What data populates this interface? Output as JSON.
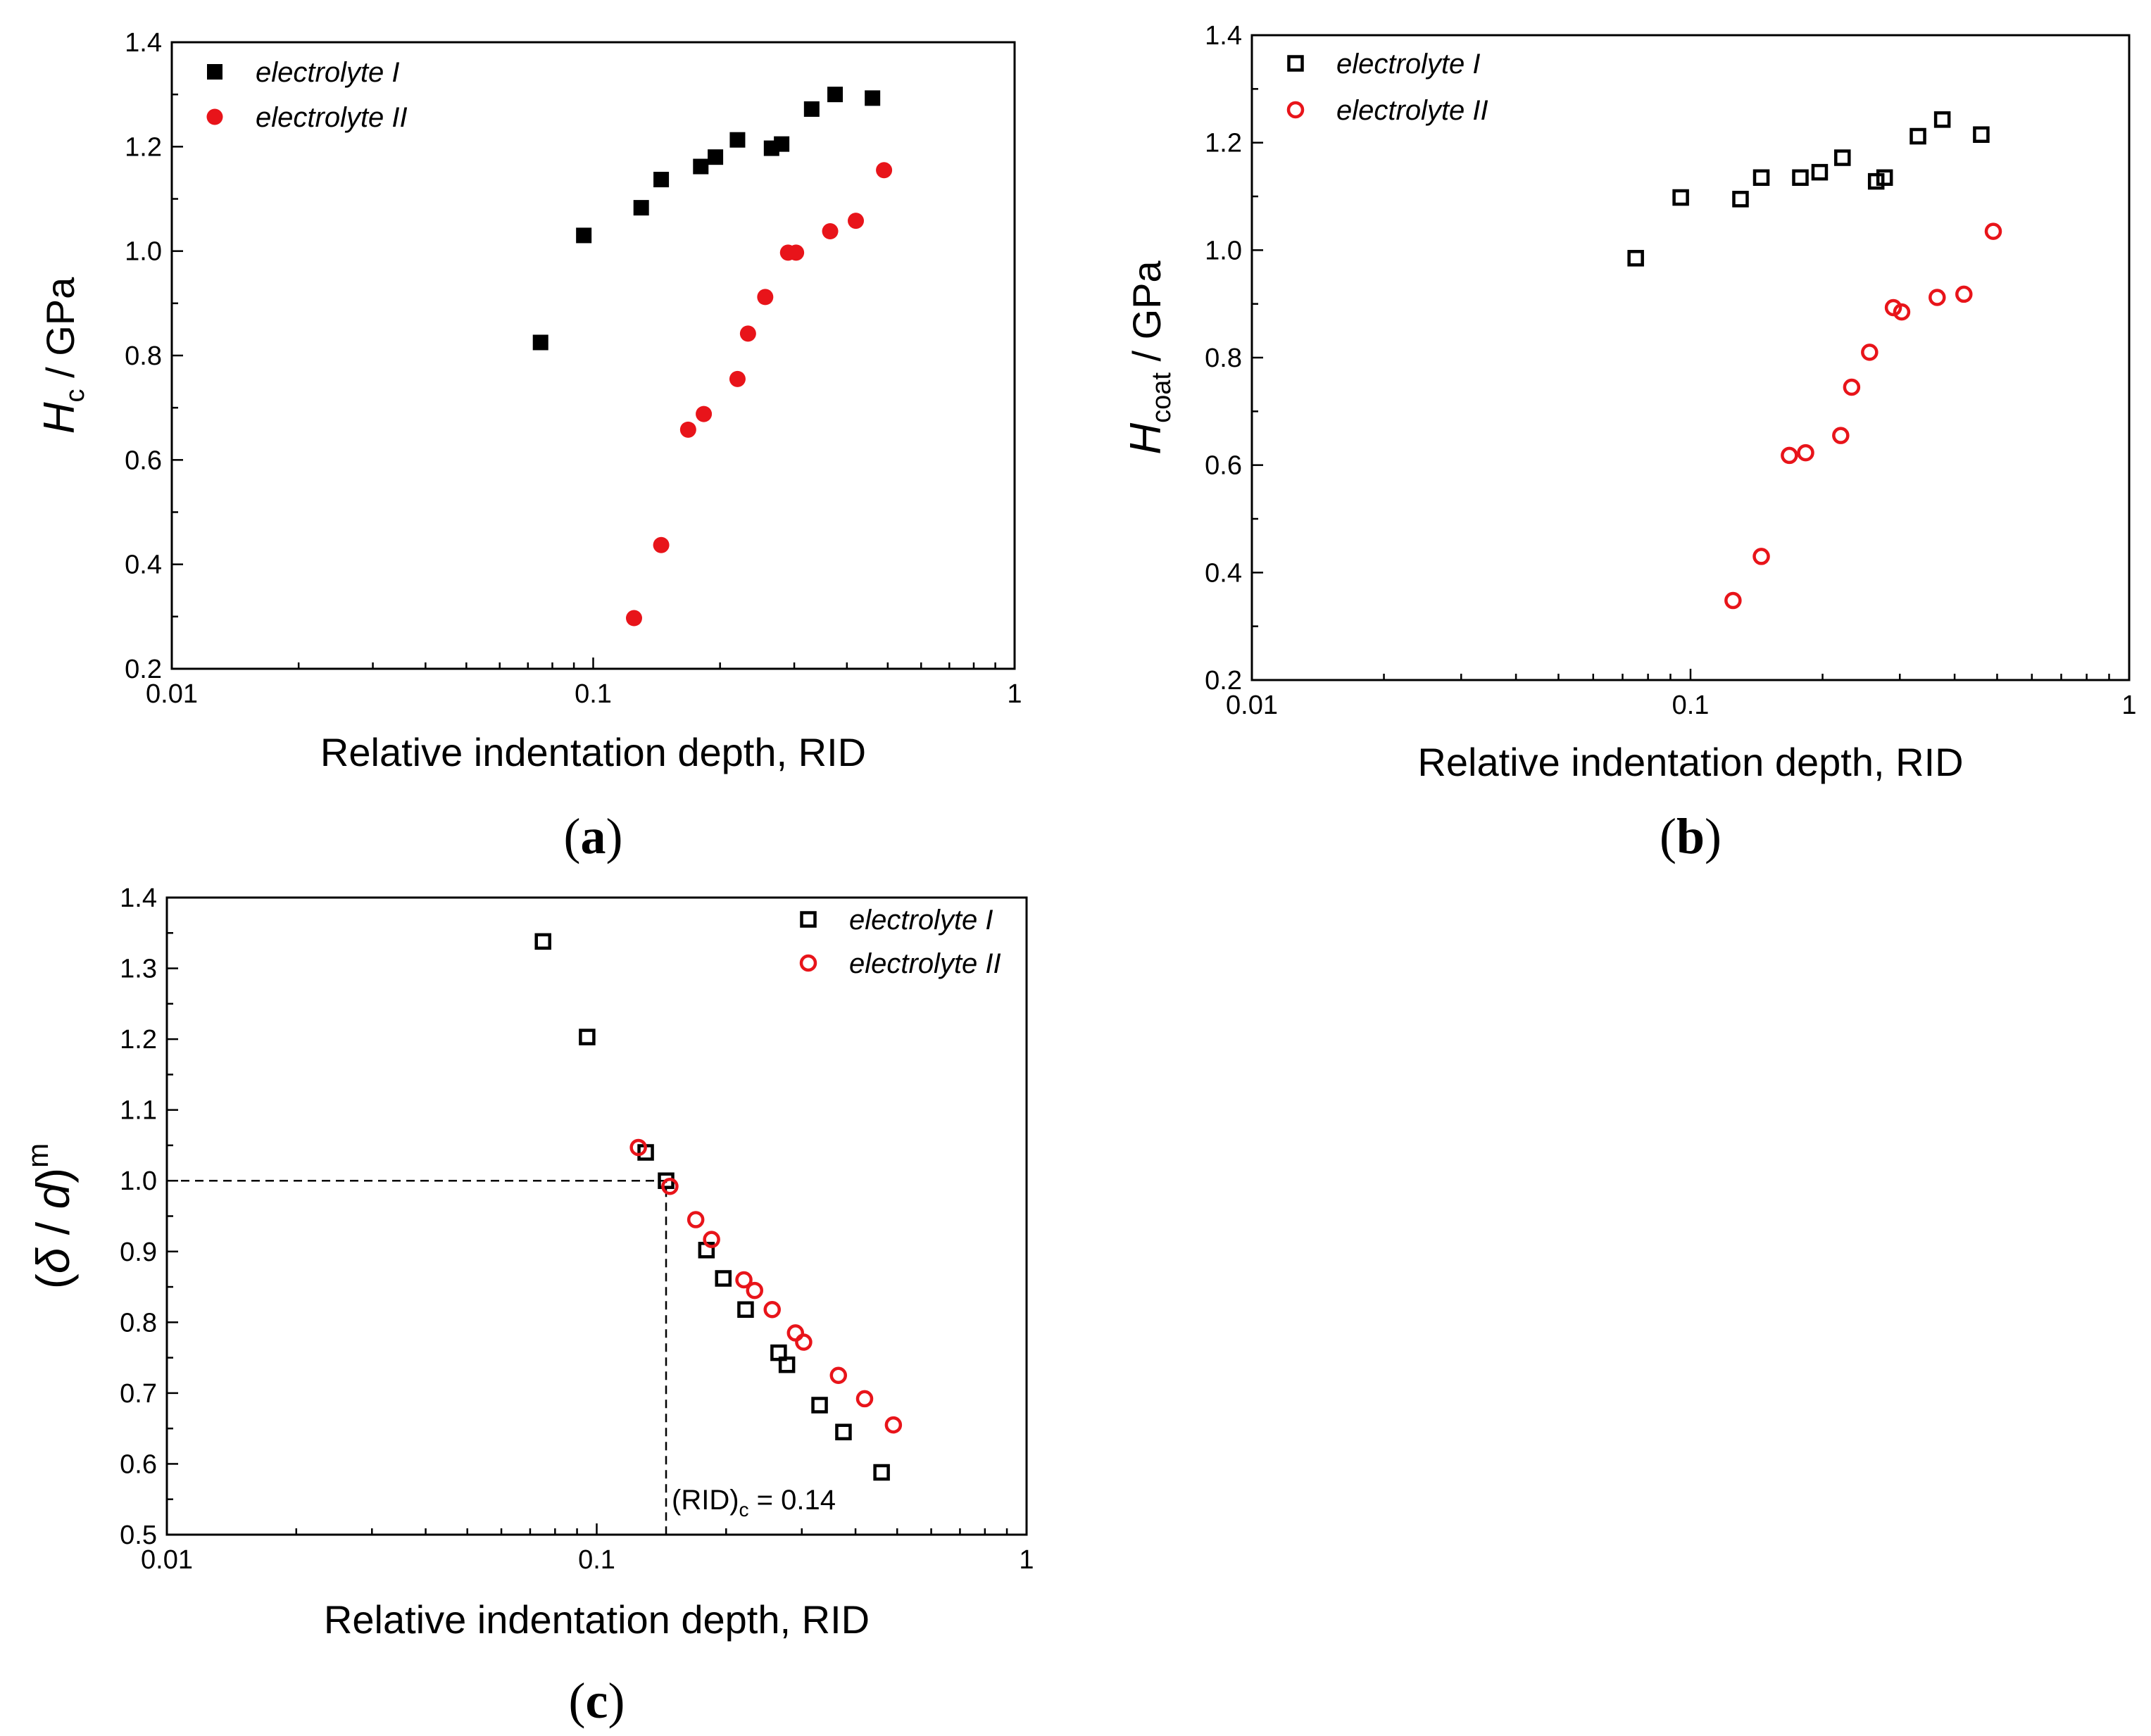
{
  "chart_data": [
    {
      "panel": "a",
      "type": "scatter",
      "caption": [
        "(",
        "a",
        ")"
      ],
      "xlabel": "Relative indentation depth, RID",
      "ylabel": {
        "main": "H",
        "sub": "c",
        "rest": " / GPa"
      },
      "xscale": "log",
      "xlim": [
        0.01,
        1
      ],
      "ylim": [
        0.2,
        1.4
      ],
      "xticks": [
        {
          "v": 0.01,
          "label": "0.01"
        },
        {
          "v": 0.1,
          "label": "0.1"
        },
        {
          "v": 1,
          "label": "1"
        }
      ],
      "yticks": [
        {
          "v": 0.2,
          "label": "0.2"
        },
        {
          "v": 0.4,
          "label": "0.4"
        },
        {
          "v": 0.6,
          "label": "0.6"
        },
        {
          "v": 0.8,
          "label": "0.8"
        },
        {
          "v": 1.0,
          "label": "1.0"
        },
        {
          "v": 1.2,
          "label": "1.2"
        },
        {
          "v": 1.4,
          "label": "1.4"
        }
      ],
      "legend_position": "top-left",
      "series": [
        {
          "name": "electrolyte I",
          "marker": "square-filled",
          "color": "#000000",
          "x": [
            0.075,
            0.095,
            0.13,
            0.145,
            0.18,
            0.195,
            0.22,
            0.265,
            0.28,
            0.33,
            0.375,
            0.46
          ],
          "y": [
            0.825,
            1.03,
            1.083,
            1.137,
            1.162,
            1.18,
            1.213,
            1.197,
            1.205,
            1.272,
            1.3,
            1.293
          ]
        },
        {
          "name": "electrolyte II",
          "marker": "circle-filled",
          "color": "#e8141a",
          "x": [
            0.125,
            0.145,
            0.168,
            0.183,
            0.22,
            0.233,
            0.256,
            0.29,
            0.303,
            0.365,
            0.42,
            0.49
          ],
          "y": [
            0.297,
            0.437,
            0.658,
            0.688,
            0.755,
            0.842,
            0.912,
            0.997,
            0.997,
            1.038,
            1.058,
            1.155
          ]
        }
      ]
    },
    {
      "panel": "b",
      "type": "scatter",
      "caption": [
        "(",
        "b",
        ")"
      ],
      "xlabel": "Relative indentation depth, RID",
      "ylabel": {
        "main": "H",
        "sub": "coat",
        "rest": " / GPa"
      },
      "xscale": "log",
      "xlim": [
        0.01,
        1
      ],
      "ylim": [
        0.2,
        1.4
      ],
      "xticks": [
        {
          "v": 0.01,
          "label": "0.01"
        },
        {
          "v": 0.1,
          "label": "0.1"
        },
        {
          "v": 1,
          "label": "1"
        }
      ],
      "yticks": [
        {
          "v": 0.2,
          "label": "0.2"
        },
        {
          "v": 0.4,
          "label": "0.4"
        },
        {
          "v": 0.6,
          "label": "0.6"
        },
        {
          "v": 0.8,
          "label": "0.8"
        },
        {
          "v": 1.0,
          "label": "1.0"
        },
        {
          "v": 1.2,
          "label": "1.2"
        },
        {
          "v": 1.4,
          "label": "1.4"
        }
      ],
      "legend_position": "top-left",
      "series": [
        {
          "name": "electrolyte I",
          "marker": "square-open",
          "color": "#000000",
          "x": [
            0.075,
            0.095,
            0.13,
            0.145,
            0.178,
            0.197,
            0.222,
            0.265,
            0.277,
            0.33,
            0.375,
            0.46
          ],
          "y": [
            0.985,
            1.098,
            1.095,
            1.135,
            1.135,
            1.145,
            1.172,
            1.128,
            1.135,
            1.212,
            1.243,
            1.215
          ]
        },
        {
          "name": "electrolyte II",
          "marker": "circle-open",
          "color": "#e8141a",
          "x": [
            0.125,
            0.145,
            0.168,
            0.183,
            0.22,
            0.233,
            0.256,
            0.29,
            0.303,
            0.365,
            0.42,
            0.49
          ],
          "y": [
            0.348,
            0.43,
            0.618,
            0.623,
            0.655,
            0.745,
            0.81,
            0.893,
            0.885,
            0.912,
            0.918,
            1.035
          ]
        }
      ]
    },
    {
      "panel": "c",
      "type": "scatter",
      "caption": [
        "(",
        "c",
        ")"
      ],
      "xlabel": "Relative indentation depth, RID",
      "ylabel": {
        "open": "(",
        "delta": "δ",
        "slash": " / ",
        "d": "d",
        "close": ")",
        "sup": "m"
      },
      "xscale": "log",
      "xlim": [
        0.01,
        1
      ],
      "ylim": [
        0.5,
        1.4
      ],
      "xticks": [
        {
          "v": 0.01,
          "label": "0.01"
        },
        {
          "v": 0.1,
          "label": "0.1"
        },
        {
          "v": 1,
          "label": "1"
        }
      ],
      "yticks": [
        {
          "v": 0.5,
          "label": "0.5"
        },
        {
          "v": 0.6,
          "label": "0.6"
        },
        {
          "v": 0.7,
          "label": "0.7"
        },
        {
          "v": 0.8,
          "label": "0.8"
        },
        {
          "v": 0.9,
          "label": "0.9"
        },
        {
          "v": 1.0,
          "label": "1.0"
        },
        {
          "v": 1.1,
          "label": "1.1"
        },
        {
          "v": 1.2,
          "label": "1.2"
        },
        {
          "v": 1.3,
          "label": "1.3"
        },
        {
          "v": 1.4,
          "label": "1.4"
        }
      ],
      "legend_position": "top-right",
      "reference": {
        "x": 0.145,
        "y": 1.0
      },
      "annotation": {
        "prefix": "(RID)",
        "sub": "c",
        "suffix": " = 0.14"
      },
      "series": [
        {
          "name": "electrolyte I",
          "marker": "square-open",
          "color": "#000000",
          "x": [
            0.075,
            0.095,
            0.13,
            0.145,
            0.18,
            0.197,
            0.222,
            0.265,
            0.277,
            0.33,
            0.375,
            0.46
          ],
          "y": [
            1.338,
            1.203,
            1.04,
            1.0,
            0.902,
            0.862,
            0.818,
            0.757,
            0.74,
            0.683,
            0.645,
            0.588
          ]
        },
        {
          "name": "electrolyte II",
          "marker": "circle-open",
          "color": "#e8141a",
          "x": [
            0.125,
            0.148,
            0.17,
            0.185,
            0.22,
            0.233,
            0.256,
            0.29,
            0.303,
            0.365,
            0.42,
            0.49
          ],
          "y": [
            1.047,
            0.992,
            0.945,
            0.917,
            0.86,
            0.845,
            0.818,
            0.785,
            0.772,
            0.725,
            0.692,
            0.655
          ]
        }
      ]
    }
  ]
}
